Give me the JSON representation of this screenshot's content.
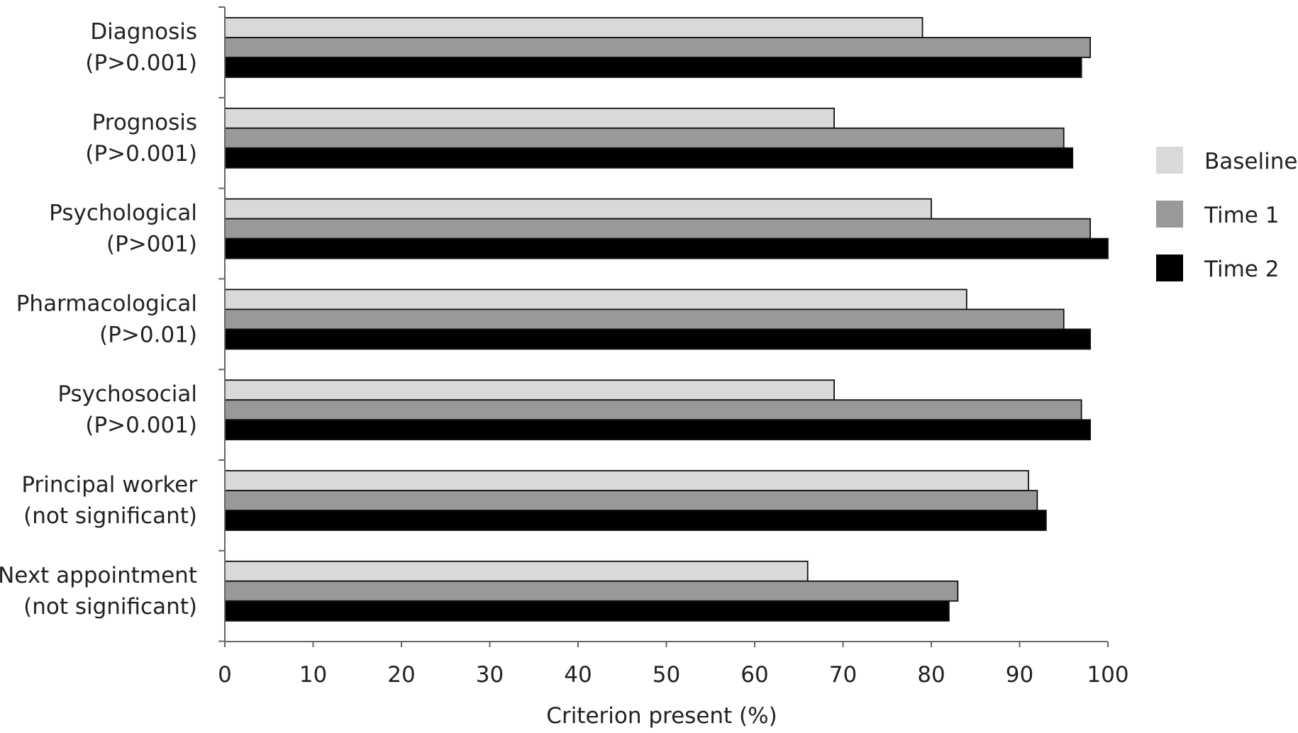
{
  "chart_data": {
    "type": "bar",
    "orientation": "horizontal",
    "categories": [
      {
        "line1": "Diagnosis",
        "line2": "(P>0.001)"
      },
      {
        "line1": "Prognosis",
        "line2": "(P>0.001)"
      },
      {
        "line1": "Psychological",
        "line2": "(P>001)"
      },
      {
        "line1": "Pharmacological",
        "line2": "(P>0.01)"
      },
      {
        "line1": "Psychosocial",
        "line2": "(P>0.001)"
      },
      {
        "line1": "Principal worker",
        "line2": "(not significant)"
      },
      {
        "line1": "Next appointment",
        "line2": "(not significant)"
      }
    ],
    "series": [
      {
        "name": "Baseline",
        "color": "#d9d9d9",
        "values": [
          79,
          69,
          80,
          84,
          69,
          91,
          66
        ]
      },
      {
        "name": "Time 1",
        "color": "#999999",
        "values": [
          98,
          95,
          98,
          95,
          97,
          92,
          83
        ]
      },
      {
        "name": "Time 2",
        "color": "#000000",
        "values": [
          97,
          96,
          100,
          98,
          98,
          93,
          82
        ]
      }
    ],
    "xlabel": "Criterion present (%)",
    "ylabel": "",
    "xlim": [
      0,
      100
    ],
    "xticks": [
      "0",
      "10",
      "20",
      "30",
      "40",
      "50",
      "60",
      "70",
      "80",
      "90",
      "100"
    ],
    "grid": false,
    "legend_position": "right"
  }
}
